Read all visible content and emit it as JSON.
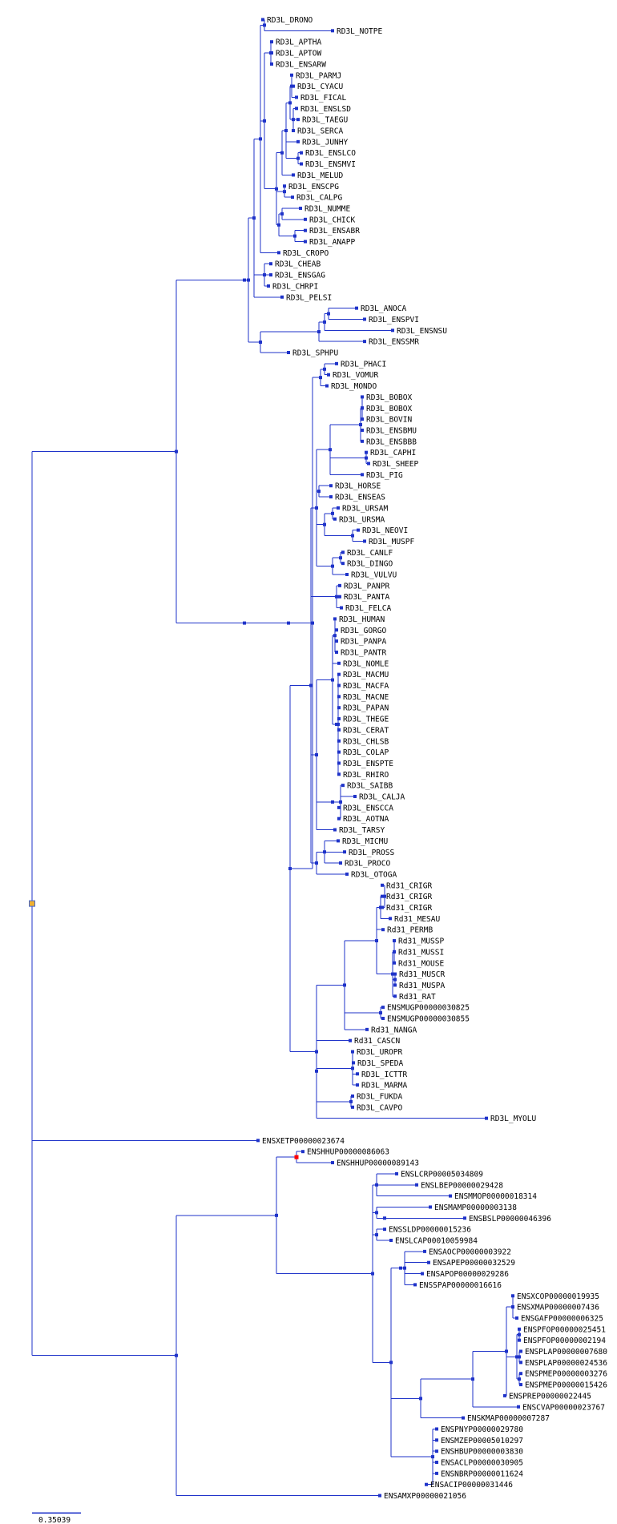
{
  "colors": {
    "branch": "#1f33c9",
    "node": "#1f33c9",
    "duplication_node": "#ff0000",
    "root_node": "#f0b030",
    "label": "#000000"
  },
  "scale_bar": {
    "label": "0.35039"
  },
  "leaves": [
    "RD3L_DRONO",
    "RD3L_NOTPE",
    "RD3L_APTHA",
    "RD3L_APTOW",
    "RD3L_ENSARW",
    "RD3L_PARMJ",
    "RD3L_CYACU",
    "RD3L_FICAL",
    "RD3L_ENSLSD",
    "RD3L_TAEGU",
    "RD3L_SERCA",
    "RD3L_JUNHY",
    "RD3L_ENSLCO",
    "RD3L_ENSMVI",
    "RD3L_MELUD",
    "RD3L_ENSCPG",
    "RD3L_CALPG",
    "RD3L_NUMME",
    "RD3L_CHICK",
    "RD3L_ENSABR",
    "RD3L_ANAPP",
    "RD3L_CROPO",
    "RD3L_CHEAB",
    "RD3L_ENSGAG",
    "RD3L_CHRPI",
    "RD3L_PELSI",
    "RD3L_ANOCA",
    "RD3L_ENSPVI",
    "RD3L_ENSNSU",
    "RD3L_ENSSMR",
    "RD3L_SPHPU",
    "RD3L_PHACI",
    "RD3L_VOMUR",
    "RD3L_MONDO",
    "RD3L_BOBOX",
    "RD3L_BOBOX",
    "RD3L_BOVIN",
    "RD3L_ENSBMU",
    "RD3L_ENSBBB",
    "RD3L_CAPHI",
    "RD3L_SHEEP",
    "RD3L_PIG",
    "RD3L_HORSE",
    "RD3L_ENSEAS",
    "RD3L_URSAM",
    "RD3L_URSMA",
    "RD3L_NEOVI",
    "RD3L_MUSPF",
    "RD3L_CANLF",
    "RD3L_DINGO",
    "RD3L_VULVU",
    "RD3L_PANPR",
    "RD3L_PANTA",
    "RD3L_FELCA",
    "RD3L_HUMAN",
    "RD3L_GORGO",
    "RD3L_PANPA",
    "RD3L_PANTR",
    "RD3L_NOMLE",
    "RD3L_MACMU",
    "RD3L_MACFA",
    "RD3L_MACNE",
    "RD3L_PAPAN",
    "RD3L_THEGE",
    "RD3L_CERAT",
    "RD3L_CHLSB",
    "RD3L_COLAP",
    "RD3L_ENSPTE",
    "RD3L_RHIRO",
    "RD3L_SAIBB",
    "RD3L_CALJA",
    "RD3L_ENSCCA",
    "RD3L_AOTNA",
    "RD3L_TARSY",
    "RD3L_MICMU",
    "RD3L_PROSS",
    "RD3L_PROCO",
    "RD3L_OTOGA",
    "Rd31_CRIGR",
    "Rd31_CRIGR",
    "Rd31_CRIGR",
    "Rd31_MESAU",
    "Rd31_PERMB",
    "Rd31_MUSSP",
    "Rd31_MUSSI",
    "Rd31_MOUSE",
    "Rd31_MUSCR",
    "Rd31_MUSPA",
    "Rd31_RAT",
    "ENSMUGP00000030825",
    "ENSMUGP00000030855",
    "Rd31_NANGA",
    "Rd31_CASCN",
    "RD3L_UROPR",
    "RD3L_SPEDA",
    "RD3L_ICTTR",
    "RD3L_MARMA",
    "RD3L_FUKDA",
    "RD3L_CAVPO",
    "RD3L_MYOLU",
    "ENSXETP00000023674",
    "ENSHHUP00000086063",
    "ENSHHUP00000089143",
    "ENSLCRP00005034809",
    "ENSLBEP00000029428",
    "ENSMMOP00000018314",
    "ENSMAMP00000003138",
    "ENSBSLP00000046396",
    "ENSSLDP00000015236",
    "ENSLCAP00010059984",
    "ENSAOCP00000003922",
    "ENSAPEP00000032529",
    "ENSAPOP00000029286",
    "ENSSPAP00000016616",
    "ENSXCOP00000019935",
    "ENSXMAP00000007436",
    "ENSGAFP00000006325",
    "ENSPFOP00000025451",
    "ENSPFOP00000002194",
    "ENSPLAP00000007680",
    "ENSPLAP00000024536",
    "ENSPMEP00000003276",
    "ENSPMEP00000015426",
    "ENSPREP00000022445",
    "ENSCVAP00000023767",
    "ENSKMAP00000007287",
    "ENSPNYP00000029780",
    "ENSMZEP00005010297",
    "ENSHBUP00000003830",
    "ENSACLP00000030905",
    "ENSNBRP00000011624",
    "ENSACIP00000031446",
    "ENSAMXP00000021056"
  ]
}
